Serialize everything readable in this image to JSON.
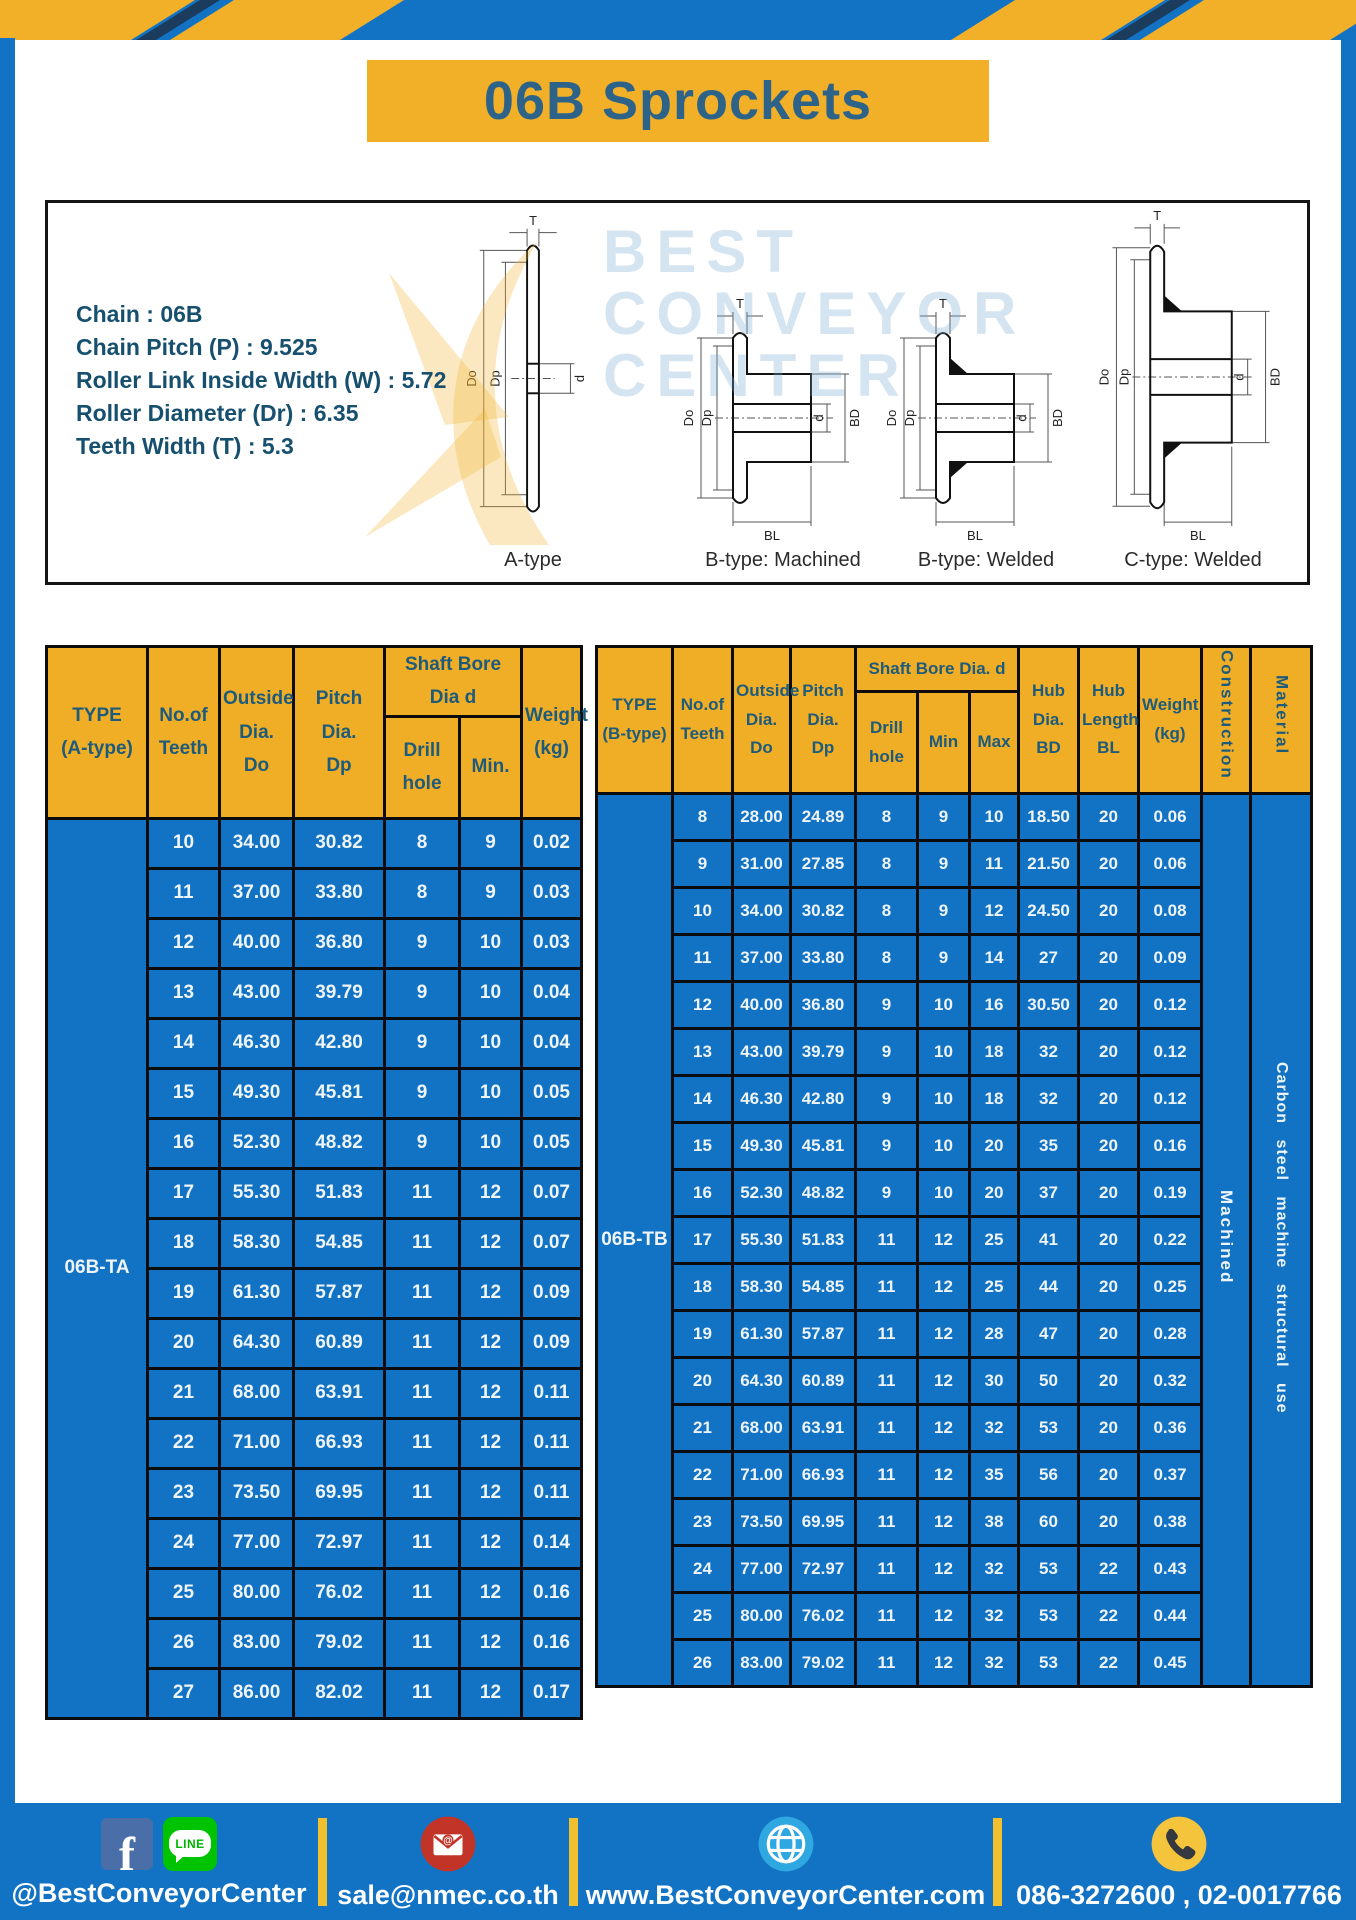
{
  "title": "06B Sprockets",
  "specs": [
    "Chain : 06B",
    "Chain Pitch (P) : 9.525",
    "Roller Link Inside Width (W) : 5.72",
    "Roller Diameter (Dr) : 6.35",
    "Teeth Width (T) : 5.3"
  ],
  "drawings": {
    "watermark_lines": [
      "BEST",
      "CONVEYOR",
      "CENTER"
    ],
    "captions": [
      "A-type",
      "B-type: Machined",
      "B-type: Welded",
      "C-type: Welded"
    ],
    "dims": {
      "t": "T",
      "do": "Do",
      "dp": "Dp",
      "d": "d",
      "bd": "BD",
      "bl": "BL"
    }
  },
  "table_a": {
    "header": {
      "type": "TYPE\n(A-type)",
      "teeth": "No.of\nTeeth",
      "outside": "Outside\nDia.\nDo",
      "pitch": "Pitch Dia.\nDp",
      "shaft_group": "Shaft Bore Dia d",
      "drill": "Drill hole",
      "min": "Min.",
      "weight": "Weight\n(kg)"
    },
    "type_label": "06B-TA",
    "rows": [
      [
        "10",
        "34.00",
        "30.82",
        "8",
        "9",
        "0.02"
      ],
      [
        "11",
        "37.00",
        "33.80",
        "8",
        "9",
        "0.03"
      ],
      [
        "12",
        "40.00",
        "36.80",
        "9",
        "10",
        "0.03"
      ],
      [
        "13",
        "43.00",
        "39.79",
        "9",
        "10",
        "0.04"
      ],
      [
        "14",
        "46.30",
        "42.80",
        "9",
        "10",
        "0.04"
      ],
      [
        "15",
        "49.30",
        "45.81",
        "9",
        "10",
        "0.05"
      ],
      [
        "16",
        "52.30",
        "48.82",
        "9",
        "10",
        "0.05"
      ],
      [
        "17",
        "55.30",
        "51.83",
        "11",
        "12",
        "0.07"
      ],
      [
        "18",
        "58.30",
        "54.85",
        "11",
        "12",
        "0.07"
      ],
      [
        "19",
        "61.30",
        "57.87",
        "11",
        "12",
        "0.09"
      ],
      [
        "20",
        "64.30",
        "60.89",
        "11",
        "12",
        "0.09"
      ],
      [
        "21",
        "68.00",
        "63.91",
        "11",
        "12",
        "0.11"
      ],
      [
        "22",
        "71.00",
        "66.93",
        "11",
        "12",
        "0.11"
      ],
      [
        "23",
        "73.50",
        "69.95",
        "11",
        "12",
        "0.11"
      ],
      [
        "24",
        "77.00",
        "72.97",
        "11",
        "12",
        "0.14"
      ],
      [
        "25",
        "80.00",
        "76.02",
        "11",
        "12",
        "0.16"
      ],
      [
        "26",
        "83.00",
        "79.02",
        "11",
        "12",
        "0.16"
      ],
      [
        "27",
        "86.00",
        "82.02",
        "11",
        "12",
        "0.17"
      ]
    ]
  },
  "table_b": {
    "header": {
      "type": "TYPE\n(B-type)",
      "teeth": "No.of\nTeeth",
      "outside": "Outside\nDia.\nDo",
      "pitch": "Pitch\nDia.\nDp",
      "shaft_group": "Shaft Bore Dia. d",
      "drill": "Drill hole",
      "min": "Min",
      "max": "Max",
      "hub_dia": "Hub\nDia.\nBD",
      "hub_len": "Hub\nLength\nBL",
      "weight": "Weight\n(kg)",
      "construction": "Construction",
      "material": "Material"
    },
    "type_label": "06B-TB",
    "construction_value": "Machined",
    "material_value": "Carbon steel machine structural use",
    "rows": [
      [
        "8",
        "28.00",
        "24.89",
        "8",
        "9",
        "10",
        "18.50",
        "20",
        "0.06"
      ],
      [
        "9",
        "31.00",
        "27.85",
        "8",
        "9",
        "11",
        "21.50",
        "20",
        "0.06"
      ],
      [
        "10",
        "34.00",
        "30.82",
        "8",
        "9",
        "12",
        "24.50",
        "20",
        "0.08"
      ],
      [
        "11",
        "37.00",
        "33.80",
        "8",
        "9",
        "14",
        "27",
        "20",
        "0.09"
      ],
      [
        "12",
        "40.00",
        "36.80",
        "9",
        "10",
        "16",
        "30.50",
        "20",
        "0.12"
      ],
      [
        "13",
        "43.00",
        "39.79",
        "9",
        "10",
        "18",
        "32",
        "20",
        "0.12"
      ],
      [
        "14",
        "46.30",
        "42.80",
        "9",
        "10",
        "18",
        "32",
        "20",
        "0.12"
      ],
      [
        "15",
        "49.30",
        "45.81",
        "9",
        "10",
        "20",
        "35",
        "20",
        "0.16"
      ],
      [
        "16",
        "52.30",
        "48.82",
        "9",
        "10",
        "20",
        "37",
        "20",
        "0.19"
      ],
      [
        "17",
        "55.30",
        "51.83",
        "11",
        "12",
        "25",
        "41",
        "20",
        "0.22"
      ],
      [
        "18",
        "58.30",
        "54.85",
        "11",
        "12",
        "25",
        "44",
        "20",
        "0.25"
      ],
      [
        "19",
        "61.30",
        "57.87",
        "11",
        "12",
        "28",
        "47",
        "20",
        "0.28"
      ],
      [
        "20",
        "64.30",
        "60.89",
        "11",
        "12",
        "30",
        "50",
        "20",
        "0.32"
      ],
      [
        "21",
        "68.00",
        "63.91",
        "11",
        "12",
        "32",
        "53",
        "20",
        "0.36"
      ],
      [
        "22",
        "71.00",
        "66.93",
        "11",
        "12",
        "35",
        "56",
        "20",
        "0.37"
      ],
      [
        "23",
        "73.50",
        "69.95",
        "11",
        "12",
        "38",
        "60",
        "20",
        "0.38"
      ],
      [
        "24",
        "77.00",
        "72.97",
        "11",
        "12",
        "32",
        "53",
        "22",
        "0.43"
      ],
      [
        "25",
        "80.00",
        "76.02",
        "11",
        "12",
        "32",
        "53",
        "22",
        "0.44"
      ],
      [
        "26",
        "83.00",
        "79.02",
        "11",
        "12",
        "32",
        "53",
        "22",
        "0.45"
      ]
    ]
  },
  "footer": {
    "social_label": "@BestConveyorCenter",
    "line_badge": "LINE",
    "email": "sale@nmec.co.th",
    "website": "www.BestConveyorCenter.com",
    "phone": "086-3272600 , 02-0017766"
  },
  "colors": {
    "blue": "#1273c4",
    "yellow": "#f2b029",
    "navy": "#1c3c5e",
    "header_text": "#1e5b7b",
    "spec_text": "#17506f"
  }
}
